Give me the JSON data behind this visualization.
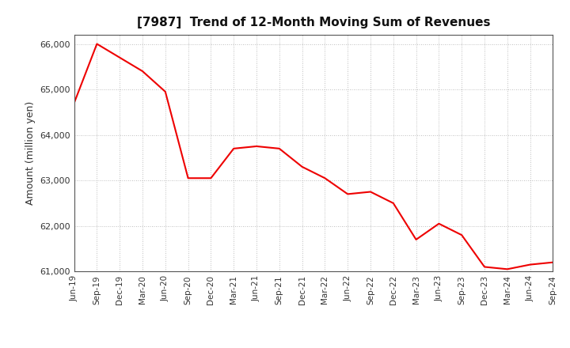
{
  "title": "[7987]  Trend of 12-Month Moving Sum of Revenues",
  "ylabel": "Amount (million yen)",
  "line_color": "#ee0000",
  "background_color": "#ffffff",
  "plot_bg_color": "#ffffff",
  "grid_color": "#aaaaaa",
  "ylim": [
    61000,
    66200
  ],
  "yticks": [
    61000,
    62000,
    63000,
    64000,
    65000,
    66000
  ],
  "x_labels": [
    "Jun-19",
    "Sep-19",
    "Dec-19",
    "Mar-20",
    "Jun-20",
    "Sep-20",
    "Dec-20",
    "Mar-21",
    "Jun-21",
    "Sep-21",
    "Dec-21",
    "Mar-22",
    "Jun-22",
    "Sep-22",
    "Dec-22",
    "Mar-23",
    "Jun-23",
    "Sep-23",
    "Dec-23",
    "Mar-24",
    "Jun-24",
    "Sep-24"
  ],
  "values": [
    64700,
    66000,
    65700,
    65400,
    64950,
    63050,
    63050,
    63700,
    63750,
    63700,
    63300,
    63050,
    62700,
    62750,
    62500,
    61700,
    62050,
    61800,
    61100,
    61050,
    61150,
    61200
  ]
}
